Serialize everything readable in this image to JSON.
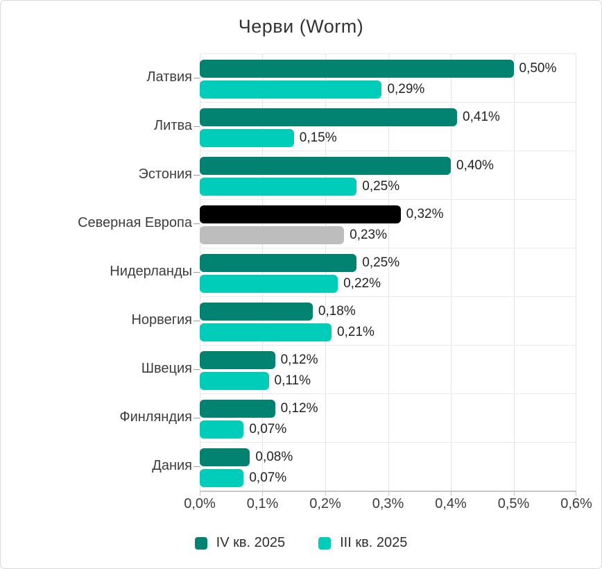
{
  "title": "Черви (Worm)",
  "chart_data": {
    "type": "bar",
    "orientation": "horizontal",
    "title": "Черви (Worm)",
    "categories": [
      "Латвия",
      "Литва",
      "Эстония",
      "Северная Европа",
      "Нидерланды",
      "Норвегия",
      "Швеция",
      "Финляндия",
      "Дания"
    ],
    "series": [
      {
        "name": "IV кв. 2025",
        "color": "#028270",
        "values": [
          0.5,
          0.41,
          0.4,
          0.32,
          0.25,
          0.18,
          0.12,
          0.12,
          0.08
        ],
        "labels": [
          "0,50%",
          "0,41%",
          "0,40%",
          "0,32%",
          "0,25%",
          "0,18%",
          "0,12%",
          "0,12%",
          "0,08%"
        ]
      },
      {
        "name": "III кв. 2025",
        "color": "#00ccba",
        "values": [
          0.29,
          0.15,
          0.25,
          0.23,
          0.22,
          0.21,
          0.11,
          0.07,
          0.07
        ],
        "labels": [
          "0,29%",
          "0,15%",
          "0,25%",
          "0,23%",
          "0,22%",
          "0,21%",
          "0,11%",
          "0,07%",
          "0,07%"
        ]
      }
    ],
    "highlight": {
      "category": "Северная Европа",
      "series_colors": [
        "#000000",
        "#bdbdbd"
      ]
    },
    "xlim": [
      0,
      0.6
    ],
    "x_tick_labels": [
      "0,0%",
      "0,1%",
      "0,2%",
      "0,3%",
      "0,4%",
      "0,5%",
      "0,6%"
    ],
    "grid": true,
    "legend_position": "bottom",
    "style": {
      "grid_color": "#e4e4e4",
      "row_line_color": "#eaeaea",
      "axis_color": "#c8c8c8",
      "text_color": "#3c3c3c",
      "value_label_color": "#222222"
    }
  }
}
